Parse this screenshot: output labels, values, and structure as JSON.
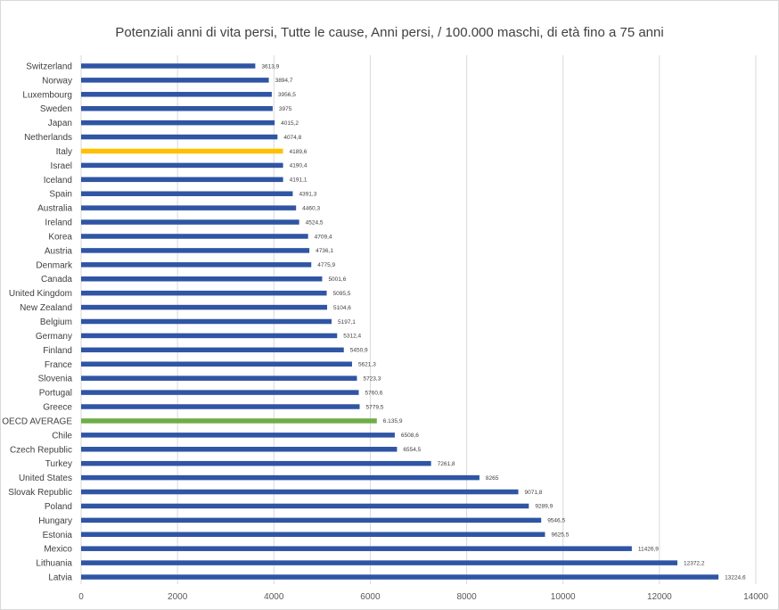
{
  "chart_data": {
    "type": "bar",
    "orientation": "horizontal",
    "title": "Potenziali anni di vita persi, Tutte le cause, Anni persi, / 100.000 maschi, di età fino a 75 anni",
    "xlim": [
      0,
      14000
    ],
    "xticks": [
      "0",
      "2000",
      "4000",
      "6000",
      "8000",
      "10000",
      "12000",
      "14000"
    ],
    "grid": true,
    "colors": {
      "default": "#2f55a4",
      "italy": "#ffc000",
      "oecd": "#70ad47",
      "grid": "#d9d9d9"
    },
    "categories": [
      "Switzerland",
      "Norway",
      "Luxembourg",
      "Sweden",
      "Japan",
      "Netherlands",
      "Italy",
      "Israel",
      "Iceland",
      "Spain",
      "Australia",
      "Ireland",
      "Korea",
      "Austria",
      "Denmark",
      "Canada",
      "United Kingdom",
      "New Zealand",
      "Belgium",
      "Germany",
      "Finland",
      "France",
      "Slovenia",
      "Portugal",
      "Greece",
      "OECD AVERAGE",
      "Chile",
      "Czech Republic",
      "Turkey",
      "United States",
      "Slovak Republic",
      "Poland",
      "Hungary",
      "Estonia",
      "Mexico",
      "Lithuania",
      "Latvia"
    ],
    "values": [
      3613.9,
      3894.7,
      3956.5,
      3975,
      4015.2,
      4074.8,
      4189.6,
      4190.4,
      4191.1,
      4391.3,
      4460.3,
      4524.5,
      4709.4,
      4736.1,
      4775.9,
      5001.6,
      5095.5,
      5104.6,
      5197.1,
      5312.4,
      5450.9,
      5621.3,
      5723.3,
      5760.6,
      5779.5,
      6135.9,
      6508.6,
      6554.5,
      7261.8,
      8265,
      9071.8,
      9289.9,
      9546.5,
      9625.5,
      11426.9,
      12372.2,
      13224.6
    ],
    "value_labels": [
      "3613,9",
      "3894,7",
      "3956,5",
      "3975",
      "4015,2",
      "4074,8",
      "4189,6",
      "4190,4",
      "4191,1",
      "4391,3",
      "4460,3",
      "4524,5",
      "4709,4",
      "4736,1",
      "4775,9",
      "5001,6",
      "5095,5",
      "5104,6",
      "5197,1",
      "5312,4",
      "5450,9",
      "5621,3",
      "5723,3",
      "5760,6",
      "5779,5",
      "6.135,9",
      "6508,6",
      "6554,5",
      "7261,8",
      "8265",
      "9071,8",
      "9289,9",
      "9546,5",
      "9625,5",
      "11426,9",
      "12372,2",
      "13224,6"
    ],
    "highlight": {
      "Italy": "italy",
      "OECD AVERAGE": "oecd"
    }
  }
}
